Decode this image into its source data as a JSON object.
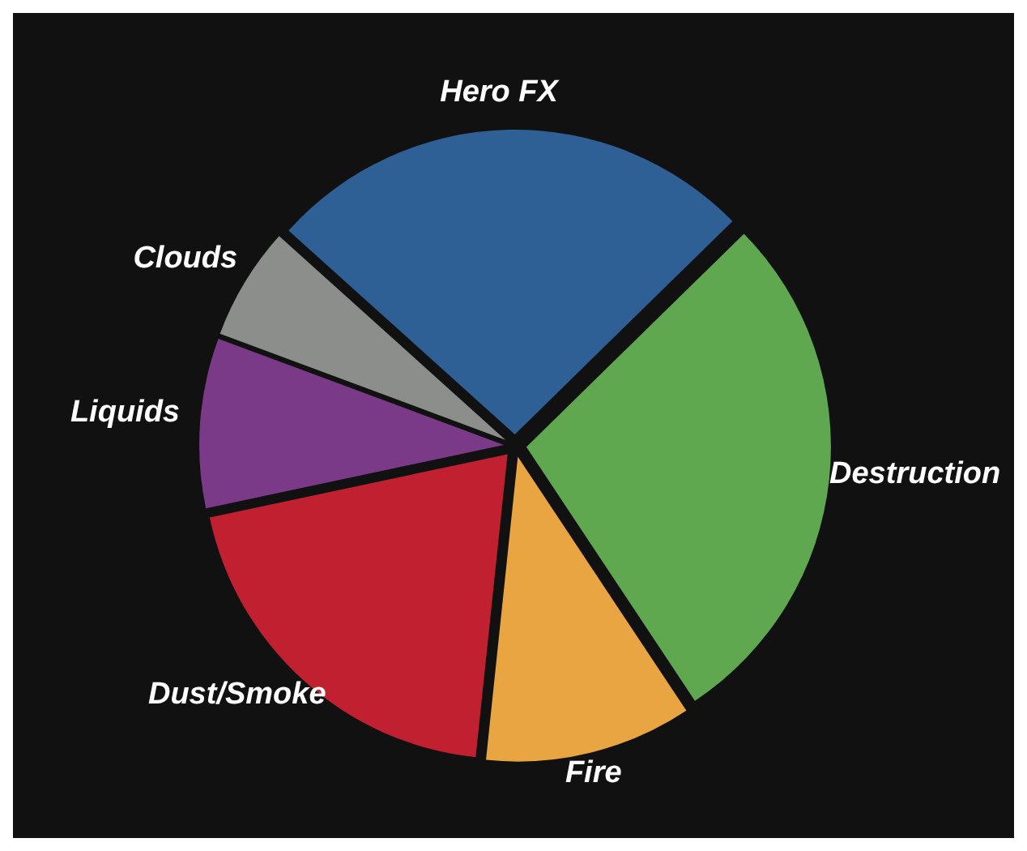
{
  "chart_data": {
    "type": "pie",
    "categories": [
      "Hero FX",
      "Destruction",
      "Fire",
      "Dust/Smoke",
      "Liquids",
      "Clouds"
    ],
    "values": [
      26,
      28,
      11,
      20,
      9,
      6
    ],
    "colors": [
      "#2e6096",
      "#5fa850",
      "#e8a542",
      "#c0202f",
      "#7a3a88",
      "#8c8e8c"
    ]
  }
}
